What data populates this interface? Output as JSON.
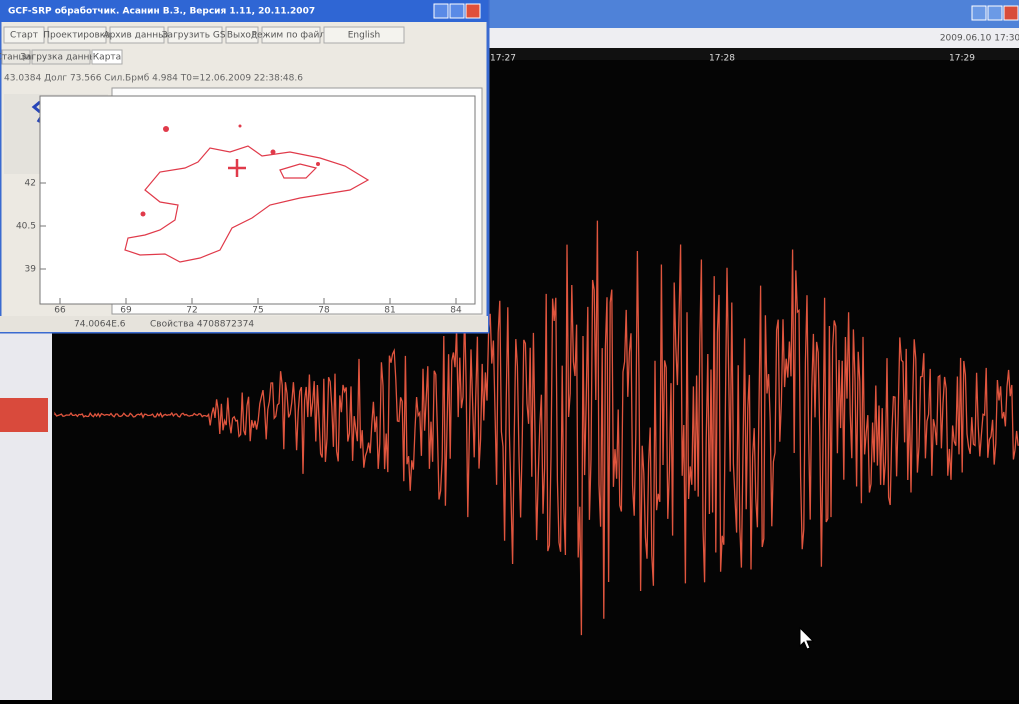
{
  "window": {
    "title": "GCF-SRP обработчик. Асанин В.З., Версия 1.11, 20.11.2007",
    "toolbar": [
      "Старт",
      "Проектировка",
      "Архив данных",
      "Загрузить GSI",
      "Выход",
      "Режим по файлу",
      "English"
    ],
    "tabs": [
      "Станции",
      "Загрузка данных",
      "Карта"
    ],
    "info": "43.0384 Долг 73.566 Сил.Брмб 4.984 T0=12.06.2009 22:38:48.6",
    "map": {
      "yticks": [
        "42",
        "40.5",
        "39"
      ],
      "xticks": [
        "66",
        "69",
        "72",
        "75",
        "78",
        "81",
        "84"
      ]
    },
    "status": [
      "74.0064E.6",
      "Свойства 4708872374"
    ]
  },
  "background": {
    "time_labels": [
      "17:27",
      "17:28",
      "17:29"
    ],
    "timestamp": "2009.06.10 17:30"
  }
}
